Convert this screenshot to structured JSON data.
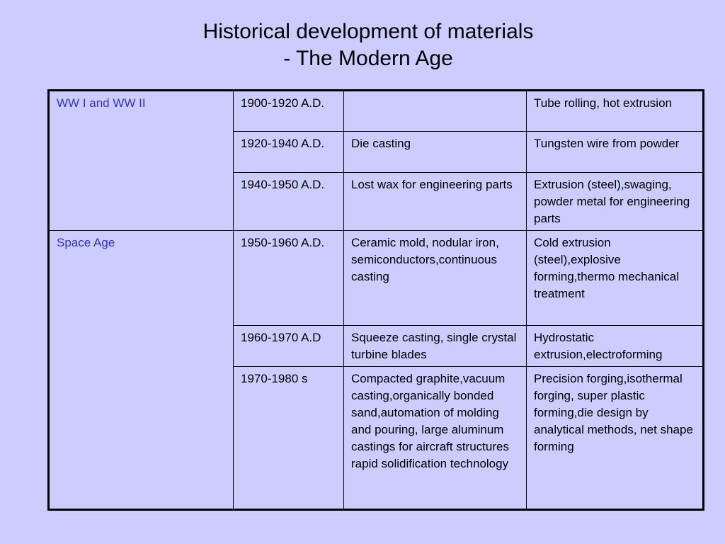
{
  "title": {
    "line1": "Historical development of materials",
    "line2": "- The Modern Age"
  },
  "table": {
    "rows": [
      {
        "era": "WW I and WW II",
        "period": "1900-1920 A.D.",
        "casting": "",
        "forming": "Tube rolling, hot extrusion"
      },
      {
        "era": "",
        "period": "1920-1940 A.D.",
        "casting": "Die casting",
        "forming": "Tungsten wire from powder"
      },
      {
        "era": "",
        "period": "1940-1950 A.D.",
        "casting": "Lost wax for engineering parts",
        "forming": "Extrusion (steel),swaging, powder metal for engineering parts"
      },
      {
        "era": "Space Age",
        "period": "1950-1960 A.D.",
        "casting": "Ceramic mold, nodular iron, semiconductors,continuous casting",
        "forming": "Cold extrusion (steel),explosive forming,thermo mechanical treatment"
      },
      {
        "era": "",
        "period": "1960-1970 A.D",
        "casting": "Squeeze casting, single crystal turbine blades",
        "forming": "Hydrostatic extrusion,electroforming"
      },
      {
        "era": "",
        "period": "1970-1980 s",
        "casting": "Compacted graphite,vacuum casting,organically bonded sand,automation of molding and pouring, large aluminum castings for aircraft structures rapid solidification technology",
        "forming": "Precision forging,isothermal forging, super plastic forming,die design by analytical methods, net shape forming"
      }
    ]
  },
  "colors": {
    "background": "#ccccff",
    "era_text": "#3333cc",
    "border": "#000000"
  }
}
